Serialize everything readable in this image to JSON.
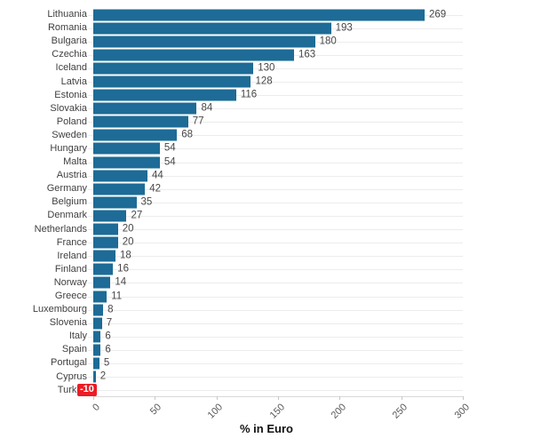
{
  "chart_data": {
    "type": "bar",
    "orientation": "horizontal",
    "title": "",
    "xlabel": "% in Euro",
    "xlim": [
      0,
      300
    ],
    "x_ticks": [
      0,
      50,
      100,
      150,
      200,
      250,
      300
    ],
    "grid": true,
    "legend": false,
    "bar_color": "#1d6b96",
    "negative_badge_color": "#ec1c24",
    "negative_badge_text_color": "#ffffff",
    "categories": [
      "Lithuania",
      "Romania",
      "Bulgaria",
      "Czechia",
      "Iceland",
      "Latvia",
      "Estonia",
      "Slovakia",
      "Poland",
      "Sweden",
      "Hungary",
      "Malta",
      "Austria",
      "Germany",
      "Belgium",
      "Denmark",
      "Netherlands",
      "France",
      "Ireland",
      "Finland",
      "Norway",
      "Greece",
      "Luxembourg",
      "Slovenia",
      "Italy",
      "Spain",
      "Portugal",
      "Cyprus",
      "Turkey"
    ],
    "values": [
      269,
      193,
      180,
      163,
      130,
      128,
      116,
      84,
      77,
      68,
      54,
      54,
      44,
      42,
      35,
      27,
      20,
      20,
      18,
      16,
      14,
      11,
      8,
      7,
      6,
      6,
      5,
      2,
      -10
    ]
  }
}
